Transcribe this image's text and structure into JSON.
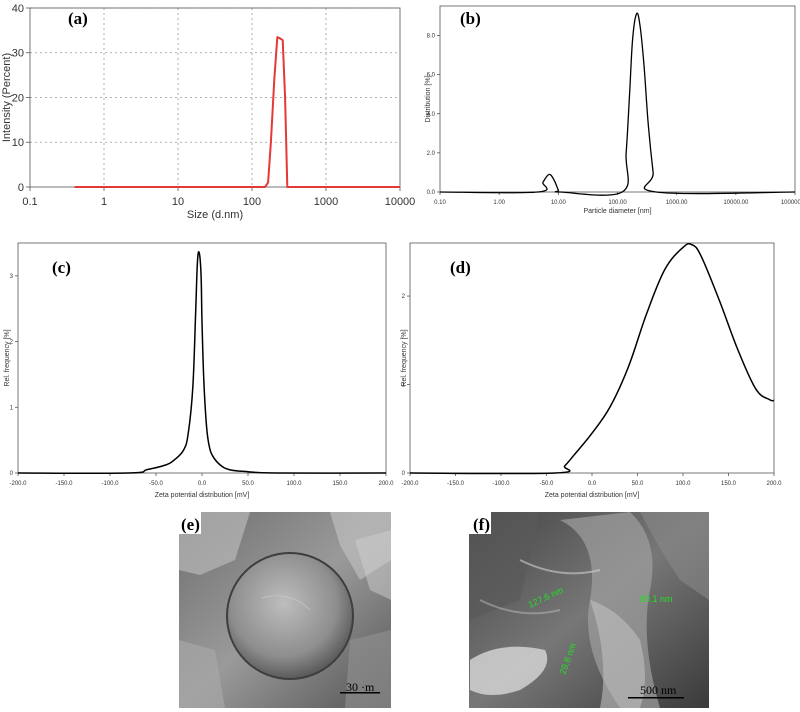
{
  "chart_data": [
    {
      "panel": "(a)",
      "type": "line",
      "xlabel": "Size (d.nm)",
      "ylabel": "Intensity (Percent)",
      "xscale": "log",
      "xlim": [
        0.1,
        10000
      ],
      "ylim": [
        0,
        40
      ],
      "grid": true,
      "xticks": [
        0.1,
        1,
        10,
        100,
        1000,
        10000
      ],
      "xtick_labels": [
        "0.1",
        "1",
        "10",
        "100",
        "1000",
        "10000"
      ],
      "yticks": [
        0,
        10,
        20,
        30,
        40
      ],
      "ytick_labels": [
        "0",
        "10",
        "20",
        "30",
        "40"
      ],
      "color": "#e53935",
      "series": [
        {
          "x": [
            0.4,
            1,
            10,
            100,
            150,
            165,
            180,
            200,
            220,
            240,
            260,
            280,
            300,
            350,
            1000,
            10000
          ],
          "y": [
            0,
            0,
            0,
            0,
            0,
            1,
            10,
            24,
            33.5,
            33.2,
            32.8,
            20,
            0,
            0,
            0,
            0
          ]
        }
      ]
    },
    {
      "panel": "(b)",
      "type": "line",
      "xlabel": "Particle diameter [nm]",
      "ylabel": "Distribution [%]",
      "xscale": "log",
      "xlim": [
        0.1,
        100000
      ],
      "ylim": [
        0,
        9.5
      ],
      "grid": false,
      "xticks": [
        0.1,
        1,
        10,
        100,
        1000,
        10000,
        100000
      ],
      "xtick_labels": [
        "0.10",
        "1.00",
        "10.00",
        "100.00",
        "1000.00",
        "10000.00",
        "100000.00"
      ],
      "yticks": [
        0,
        2,
        4,
        6,
        8
      ],
      "ytick_labels": [
        "0.0",
        "2.0",
        "4.0",
        "6.0",
        "8.0"
      ],
      "color": "#000000",
      "series": [
        {
          "x": [
            0.1,
            4.5,
            5.5,
            7,
            8.5,
            10,
            11,
            120,
            140,
            160,
            180,
            210,
            240,
            280,
            330,
            400,
            450,
            100000
          ],
          "y": [
            0,
            0,
            0.5,
            0.9,
            0.6,
            0.1,
            0,
            0,
            2,
            5,
            7.8,
            9.1,
            8.5,
            6.5,
            3.5,
            1,
            0,
            0
          ]
        }
      ]
    },
    {
      "panel": "(c)",
      "type": "line",
      "xlabel": "Zeta potential distribution [mV]",
      "ylabel": "Rel. frequency [%]",
      "xlim": [
        -200,
        200
      ],
      "ylim": [
        0,
        3.5
      ],
      "grid": false,
      "xticks": [
        -200,
        -150,
        -100,
        -50,
        0,
        50,
        100,
        150,
        200
      ],
      "xtick_labels": [
        "-200.0",
        "-150.0",
        "-100.0",
        "-50.0",
        "0.0",
        "50.0",
        "100.0",
        "150.0",
        "200.0"
      ],
      "yticks": [
        0,
        1,
        2,
        3
      ],
      "ytick_labels": [
        "0",
        "1",
        "2",
        "3"
      ],
      "color": "#000000",
      "series": [
        {
          "x": [
            -200,
            -80,
            -60,
            -40,
            -30,
            -20,
            -15,
            -10,
            -7,
            -5,
            -3,
            -1,
            0,
            2,
            5,
            8,
            12,
            20,
            30,
            50,
            80,
            200
          ],
          "y": [
            0,
            0,
            0.05,
            0.12,
            0.2,
            0.35,
            0.6,
            1.3,
            2.4,
            3.2,
            3.35,
            3.0,
            2.3,
            1.4,
            0.7,
            0.4,
            0.25,
            0.12,
            0.05,
            0.02,
            0,
            0
          ]
        }
      ]
    },
    {
      "panel": "(d)",
      "type": "line",
      "xlabel": "Zeta potential distribution [mV]",
      "ylabel": "Rel. frequency [%]",
      "xlim": [
        -200,
        200
      ],
      "ylim": [
        0,
        2.6
      ],
      "grid": false,
      "xticks": [
        -200,
        -150,
        -100,
        -50,
        0,
        50,
        100,
        150,
        200
      ],
      "xtick_labels": [
        "-200.0",
        "-150.0",
        "-100.0",
        "-50.0",
        "0.0",
        "50.0",
        "100.0",
        "150.0",
        "200.0"
      ],
      "yticks": [
        0,
        1,
        2
      ],
      "ytick_labels": [
        "0",
        "1",
        "2"
      ],
      "color": "#000000",
      "series": [
        {
          "x": [
            -200,
            -40,
            -30,
            -20,
            0,
            20,
            40,
            60,
            80,
            100,
            110,
            120,
            140,
            160,
            180,
            195,
            200
          ],
          "y": [
            0,
            0,
            0.08,
            0.2,
            0.45,
            0.75,
            1.2,
            1.8,
            2.3,
            2.55,
            2.58,
            2.45,
            1.95,
            1.4,
            0.95,
            0.83,
            0.82
          ]
        }
      ]
    }
  ],
  "images": [
    {
      "panel": "(e)",
      "scale_bar": "30 ·m"
    },
    {
      "panel": "(f)",
      "scale_bar": "500 nm",
      "measurements": [
        "127.6 nm",
        "80.1 nm",
        "29.8 nm"
      ],
      "measurement_color": "#22e022"
    }
  ]
}
